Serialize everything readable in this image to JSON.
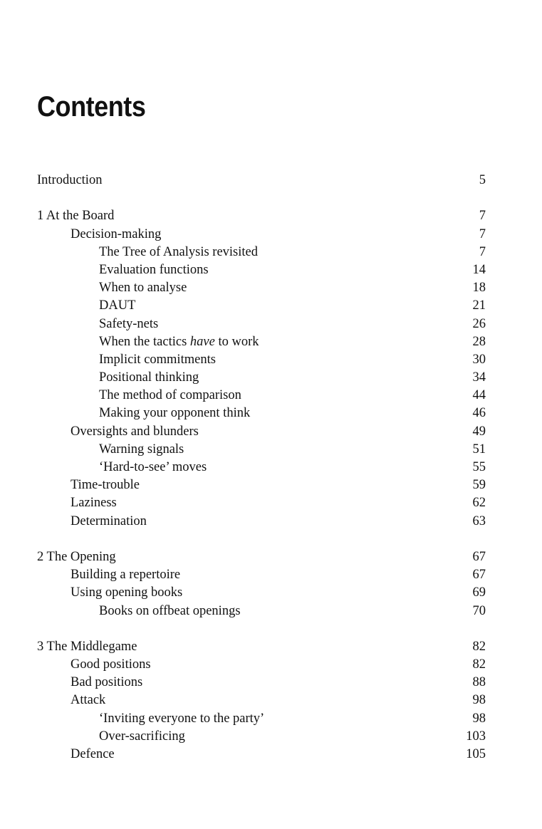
{
  "title": "Contents",
  "groups": [
    [
      {
        "level": 0,
        "title": "Introduction",
        "page": "5"
      }
    ],
    [
      {
        "level": 0,
        "title": "1  At the Board",
        "page": "7"
      },
      {
        "level": 1,
        "title": "Decision-making",
        "page": "7"
      },
      {
        "level": 2,
        "title": "The Tree of Analysis revisited",
        "page": "7"
      },
      {
        "level": 2,
        "title": "Evaluation functions",
        "page": "14"
      },
      {
        "level": 2,
        "title": "When to analyse",
        "page": "18"
      },
      {
        "level": 2,
        "title": "DAUT",
        "page": "21"
      },
      {
        "level": 2,
        "title": "Safety-nets",
        "page": "26"
      },
      {
        "level": 2,
        "title": "When the tactics <i>have</i> to work",
        "page": "28"
      },
      {
        "level": 2,
        "title": "Implicit commitments",
        "page": "30"
      },
      {
        "level": 2,
        "title": "Positional thinking",
        "page": "34"
      },
      {
        "level": 2,
        "title": "The method of comparison",
        "page": "44"
      },
      {
        "level": 2,
        "title": "Making your opponent think",
        "page": "46"
      },
      {
        "level": 1,
        "title": "Oversights and blunders",
        "page": "49"
      },
      {
        "level": 2,
        "title": "Warning signals",
        "page": "51"
      },
      {
        "level": 2,
        "title": "‘Hard-to-see’ moves",
        "page": "55"
      },
      {
        "level": 1,
        "title": "Time-trouble",
        "page": "59"
      },
      {
        "level": 1,
        "title": "Laziness",
        "page": "62"
      },
      {
        "level": 1,
        "title": "Determination",
        "page": "63"
      }
    ],
    [
      {
        "level": 0,
        "title": "2  The Opening",
        "page": "67"
      },
      {
        "level": 1,
        "title": "Building a repertoire",
        "page": "67"
      },
      {
        "level": 1,
        "title": "Using opening books",
        "page": "69"
      },
      {
        "level": 2,
        "title": "Books on offbeat openings",
        "page": "70"
      }
    ],
    [
      {
        "level": 0,
        "title": "3  The Middlegame",
        "page": "82"
      },
      {
        "level": 1,
        "title": "Good positions",
        "page": "82"
      },
      {
        "level": 1,
        "title": "Bad positions",
        "page": "88"
      },
      {
        "level": 1,
        "title": "Attack",
        "page": "98"
      },
      {
        "level": 2,
        "title": "‘Inviting everyone to the party’",
        "page": "98"
      },
      {
        "level": 2,
        "title": "Over-sacrificing",
        "page": "103"
      },
      {
        "level": 1,
        "title": "Defence",
        "page": "105"
      }
    ]
  ]
}
